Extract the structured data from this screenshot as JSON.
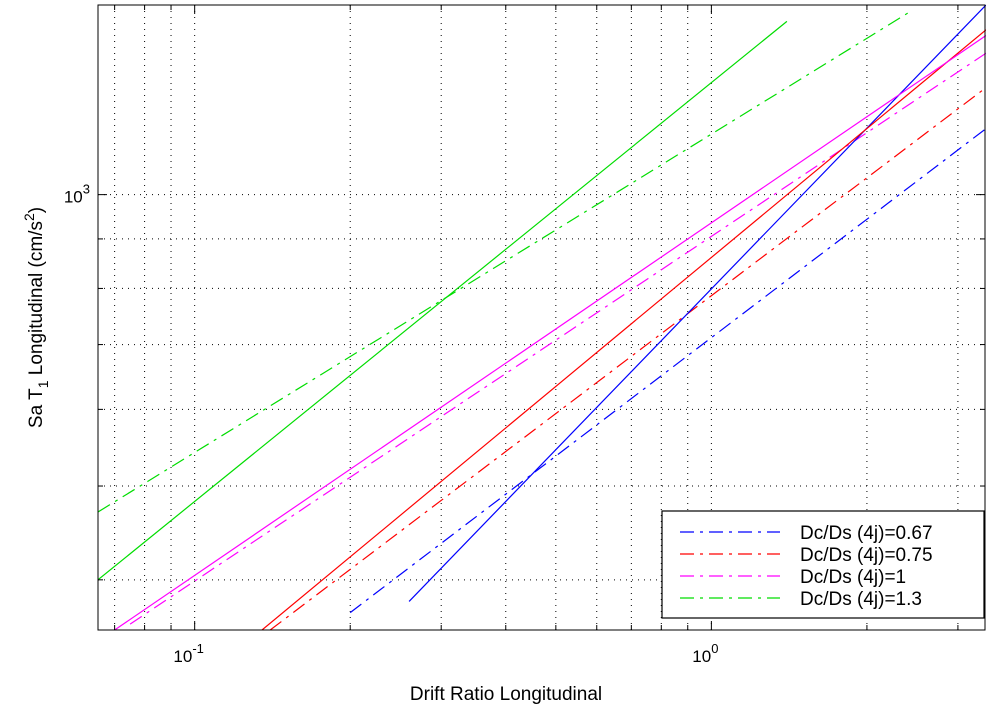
{
  "chart_data": {
    "type": "line",
    "title": "",
    "xlabel": "Drift Ratio Longitudinal",
    "ylabel": "Sa T1 Longitudinal (cm/s2)",
    "ylabel_parts": {
      "main": "Sa T",
      "sub": "1",
      "rest": " Longitudinal (cm/s",
      "sup": "2",
      "close": ")"
    },
    "xscale": "log",
    "yscale": "log",
    "xlim": [
      0.065,
      3.4
    ],
    "ylim": [
      355,
      1570
    ],
    "xticks": [
      {
        "value": 0.1,
        "base": "10",
        "exp": "-1"
      },
      {
        "value": 1,
        "base": "10",
        "exp": "0"
      }
    ],
    "yticks": [
      {
        "value": 1000,
        "base": "10",
        "exp": "3"
      }
    ],
    "grid": true,
    "legend_position": "bottom-right",
    "series": [
      {
        "name": "Dc/Ds (4j)=0.67",
        "color": "#0000ff",
        "style": "dashdot",
        "x": [
          0.2,
          3.4
        ],
        "y": [
          370,
          1170
        ]
      },
      {
        "name": "Dc/Ds (4j)=0.75",
        "color": "#ff0000",
        "style": "dashdot",
        "x": [
          0.14,
          3.4
        ],
        "y": [
          355,
          1290
        ]
      },
      {
        "name": "Dc/Ds (4j)=1",
        "color": "#ff00ff",
        "style": "dashdot",
        "x": [
          0.075,
          3.4
        ],
        "y": [
          360,
          1400
        ]
      },
      {
        "name": "Dc/Ds (4j)=1.3",
        "color": "#00dd00",
        "style": "dashdot",
        "x": [
          0.065,
          2.4
        ],
        "y": [
          470,
          1540
        ]
      },
      {
        "name": "",
        "color": "#0000ff",
        "style": "solid",
        "x": [
          0.26,
          3.4
        ],
        "y": [
          380,
          1570
        ]
      },
      {
        "name": "",
        "color": "#ff0000",
        "style": "solid",
        "x": [
          0.135,
          3.4
        ],
        "y": [
          355,
          1480
        ]
      },
      {
        "name": "",
        "color": "#ff00ff",
        "style": "solid",
        "x": [
          0.07,
          3.4
        ],
        "y": [
          355,
          1460
        ]
      },
      {
        "name": "",
        "color": "#00dd00",
        "style": "solid",
        "x": [
          0.065,
          1.4
        ],
        "y": [
          400,
          1510
        ]
      }
    ]
  }
}
